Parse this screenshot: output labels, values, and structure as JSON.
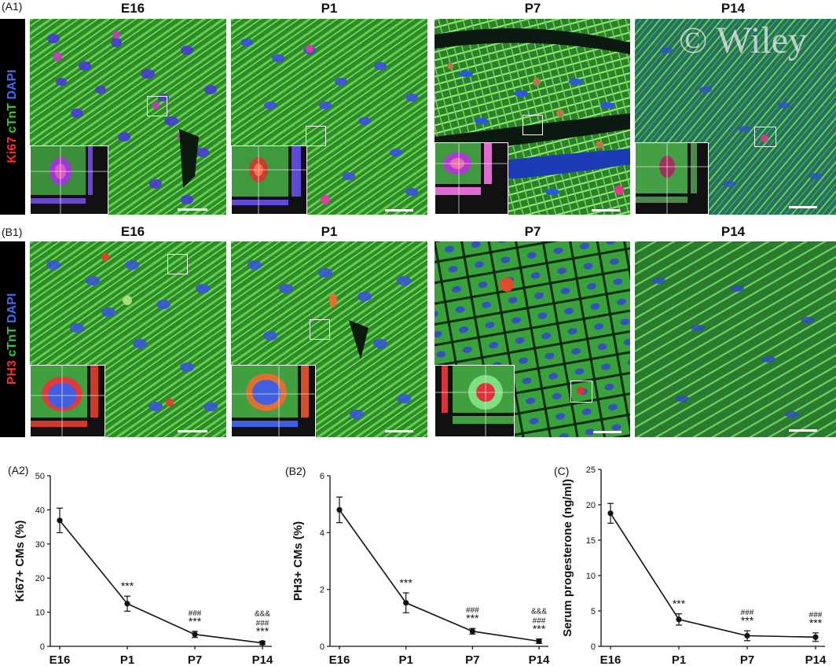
{
  "colors": {
    "sidebar": "#000000",
    "ki67": "#ff2a2a",
    "ph3": "#ff2a2a",
    "ctnt": "#2fd12f",
    "dapi": "#3a6df0",
    "marker": "#111111"
  },
  "row_a": {
    "panel_label": "(A1)",
    "columns": [
      "E16",
      "P1",
      "P7",
      "P14"
    ],
    "stain": {
      "marker": "Ki67",
      "cardiac": "cTnT",
      "nuclear": "DAPI"
    },
    "watermark": "© Wiley"
  },
  "row_b": {
    "panel_label": "(B1)",
    "columns": [
      "E16",
      "P1",
      "P7",
      "P14"
    ],
    "stain": {
      "marker": "PH3",
      "cardiac": "cTnT",
      "nuclear": "DAPI"
    }
  },
  "chart_data": [
    {
      "type": "line",
      "panel_label": "(A2)",
      "categories": [
        "E16",
        "P1",
        "P7",
        "P14"
      ],
      "values": [
        36.9,
        12.5,
        3.5,
        1.0
      ],
      "errors": [
        3.6,
        2.2,
        0.9,
        0.5
      ],
      "ylabel": "Ki67+ CMs (%)",
      "ylim": [
        0,
        50
      ],
      "yticks": [
        "0",
        "10",
        "20",
        "30",
        "40",
        "50"
      ],
      "annotations": [
        {
          "category": "P1",
          "lines": [
            "***"
          ]
        },
        {
          "category": "P7",
          "lines": [
            "###",
            "***"
          ]
        },
        {
          "category": "P14",
          "lines": [
            "&&&",
            "###",
            "***"
          ]
        }
      ]
    },
    {
      "type": "line",
      "panel_label": "(B2)",
      "categories": [
        "E16",
        "P1",
        "P7",
        "P14"
      ],
      "values": [
        4.8,
        1.53,
        0.53,
        0.18
      ],
      "errors": [
        0.45,
        0.35,
        0.1,
        0.08
      ],
      "ylabel": "PH3+ CMs (%)",
      "ylim": [
        0,
        6
      ],
      "yticks": [
        "0",
        "2",
        "4",
        "6"
      ],
      "annotations": [
        {
          "category": "P1",
          "lines": [
            "***"
          ]
        },
        {
          "category": "P7",
          "lines": [
            "###",
            "***"
          ]
        },
        {
          "category": "P14",
          "lines": [
            "&&&",
            "###",
            "***"
          ]
        }
      ]
    },
    {
      "type": "line",
      "panel_label": "(C)",
      "categories": [
        "E16",
        "P1",
        "P7",
        "P14"
      ],
      "values": [
        18.8,
        3.8,
        1.5,
        1.3
      ],
      "errors": [
        1.4,
        0.8,
        0.7,
        0.6
      ],
      "ylabel": "Serum progesterone (ng/ml)",
      "ylim": [
        0,
        25
      ],
      "yticks": [
        "0",
        "5",
        "10",
        "15",
        "20",
        "25"
      ],
      "annotations": [
        {
          "category": "P1",
          "lines": [
            "***"
          ]
        },
        {
          "category": "P7",
          "lines": [
            "###",
            "***"
          ]
        },
        {
          "category": "P14",
          "lines": [
            "###",
            "***"
          ]
        }
      ]
    }
  ]
}
